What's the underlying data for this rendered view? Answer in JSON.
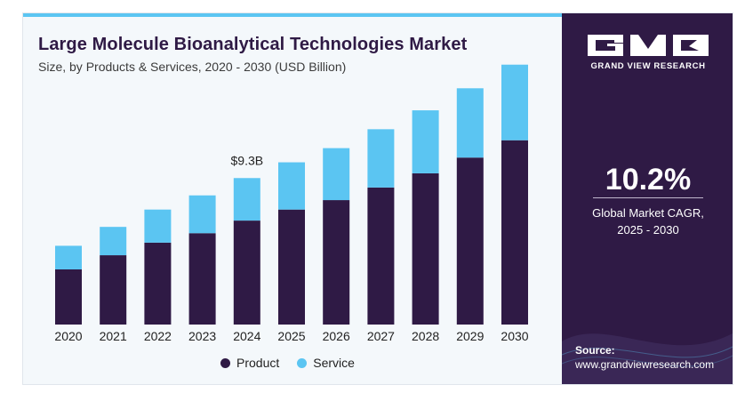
{
  "header": {
    "title": "Large Molecule Bioanalytical Technologies Market",
    "subtitle": "Size, by Products & Services, 2020 - 2030 (USD Billion)"
  },
  "chart_data": {
    "type": "bar",
    "stacked": true,
    "categories": [
      "2020",
      "2021",
      "2022",
      "2023",
      "2024",
      "2025",
      "2026",
      "2027",
      "2028",
      "2029",
      "2030"
    ],
    "series": [
      {
        "name": "Product",
        "color": "#2f1a45",
        "values": [
          3.5,
          4.4,
          5.2,
          5.8,
          6.6,
          7.3,
          7.9,
          8.7,
          9.6,
          10.6,
          11.7
        ]
      },
      {
        "name": "Service",
        "color": "#5bc5f2",
        "values": [
          1.5,
          1.8,
          2.1,
          2.4,
          2.7,
          3.0,
          3.3,
          3.7,
          4.0,
          4.4,
          4.8
        ]
      }
    ],
    "annotations": [
      {
        "category": "2024",
        "text": "$9.3B"
      }
    ],
    "ylim": [
      0,
      17.5
    ],
    "grid": false,
    "legend_position": "bottom"
  },
  "legend": {
    "items": [
      {
        "label": "Product",
        "color": "#2f1a45"
      },
      {
        "label": "Service",
        "color": "#5bc5f2"
      }
    ]
  },
  "side_panel": {
    "brand_name": "GRAND VIEW RESEARCH",
    "cagr_value": "10.2%",
    "cagr_label_line1": "Global Market CAGR,",
    "cagr_label_line2": "2025 - 2030",
    "source_label": "Source:",
    "source_url": "www.grandviewresearch.com"
  }
}
